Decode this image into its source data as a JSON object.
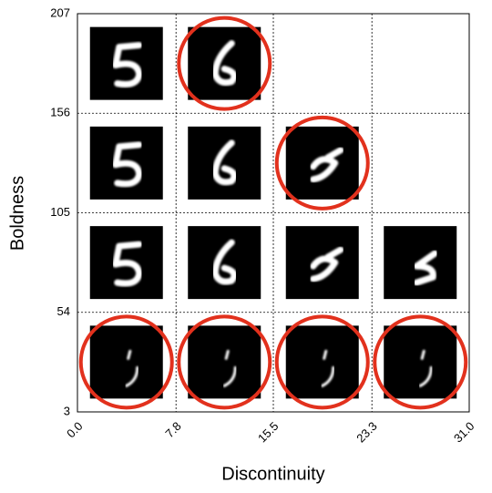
{
  "chart_data": {
    "type": "image-grid",
    "xlabel": "Discontinuity",
    "ylabel": "Boldness",
    "xlim": [
      0,
      31
    ],
    "ylim": [
      3,
      207
    ],
    "xticks": [
      {
        "value": 0,
        "label": "0.0"
      },
      7.8,
      15.5,
      23.3,
      {
        "value": 31,
        "label": "31.0"
      }
    ],
    "yticks": [
      3,
      54,
      105,
      156,
      207
    ],
    "grid": true,
    "highlight_color": "#e2311d",
    "cells": [
      [
        false,
        true,
        null,
        null
      ],
      [
        false,
        false,
        true,
        null
      ],
      [
        false,
        false,
        false,
        false
      ],
      [
        true,
        true,
        true,
        true
      ]
    ]
  }
}
